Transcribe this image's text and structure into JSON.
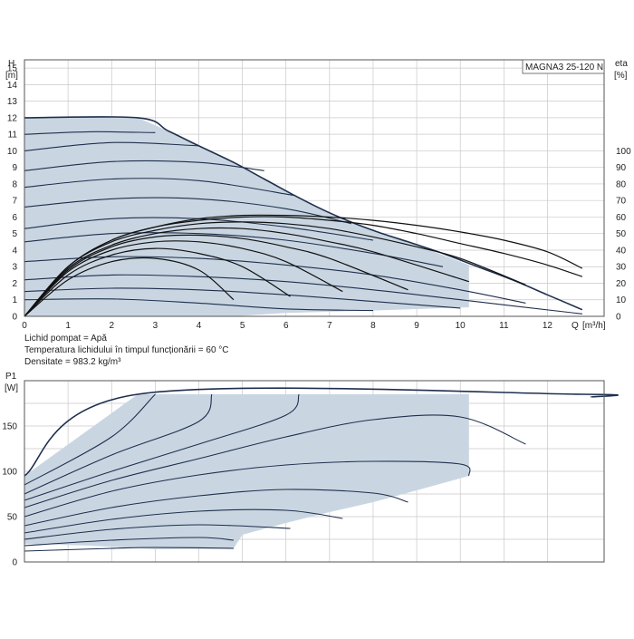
{
  "colors": {
    "fill": "#c9d6e2",
    "dark_curve": "#1f2f4d",
    "black_curve": "#111111",
    "grid": "#c8c8c8",
    "frame": "#555555"
  },
  "chart_data": [
    {
      "type": "line",
      "title": "MAGNA3 25-120 N",
      "ylabel": "H",
      "yunit": "[m]",
      "xlabel": "Q",
      "xunit": "[m³/h]",
      "y2label": "eta",
      "y2unit": "[%]",
      "xlim": [
        0,
        13.3
      ],
      "ylim": [
        0,
        15.5
      ],
      "y2lim": [
        0,
        100
      ],
      "x_ticks": [
        0,
        1,
        2,
        3,
        4,
        5,
        6,
        7,
        8,
        9,
        10,
        11,
        12
      ],
      "y_ticks": [
        0,
        1,
        2,
        3,
        4,
        5,
        6,
        7,
        8,
        9,
        10,
        11,
        12,
        13,
        14,
        15
      ],
      "y2_ticks": [
        0,
        10,
        20,
        30,
        40,
        50,
        60,
        70,
        80,
        90,
        100
      ],
      "grid": true,
      "notes": [
        "Lichid pompat = Apă",
        "Temperatura lichidului în timpul funcționării = 60 °C",
        "Densitate = 983.2 kg/m³"
      ],
      "operating_area": [
        [
          0,
          12
        ],
        [
          2.6,
          12
        ],
        [
          3.3,
          11.2
        ],
        [
          4,
          10.3
        ],
        [
          4.8,
          9.3
        ],
        [
          5.5,
          8.3
        ],
        [
          6.2,
          7.3
        ],
        [
          6.8,
          6.5
        ],
        [
          7.4,
          5.8
        ],
        [
          8.1,
          5.1
        ],
        [
          8.8,
          4.5
        ],
        [
          9.6,
          3.7
        ],
        [
          10.2,
          3.1
        ],
        [
          10.2,
          0.55
        ],
        [
          8,
          0.35
        ],
        [
          6,
          0.2
        ],
        [
          4.8,
          0
        ],
        [
          0,
          0
        ]
      ],
      "max_curve": [
        [
          0,
          12
        ],
        [
          2.6,
          12
        ],
        [
          3.3,
          11.2
        ],
        [
          4,
          10.3
        ],
        [
          4.8,
          9.3
        ],
        [
          5.5,
          8.3
        ],
        [
          6.2,
          7.3
        ],
        [
          6.8,
          6.5
        ],
        [
          7.4,
          5.8
        ],
        [
          8.1,
          5.1
        ],
        [
          8.8,
          4.5
        ],
        [
          9.6,
          3.8
        ],
        [
          10.4,
          3
        ],
        [
          11.2,
          2.2
        ],
        [
          12,
          1.3
        ],
        [
          12.8,
          0.4
        ]
      ],
      "head_curves": [
        {
          "points": [
            [
              0,
              11
            ],
            [
              1.5,
              11.15
            ],
            [
              3,
              11.1
            ]
          ]
        },
        {
          "points": [
            [
              0,
              10
            ],
            [
              2,
              10.5
            ],
            [
              4,
              10.3
            ]
          ]
        },
        {
          "points": [
            [
              0,
              8.8
            ],
            [
              2,
              9.35
            ],
            [
              4,
              9.3
            ],
            [
              5.5,
              8.8
            ]
          ]
        },
        {
          "points": [
            [
              0,
              7.8
            ],
            [
              2,
              8.3
            ],
            [
              4,
              8.2
            ],
            [
              6.2,
              7.3
            ]
          ]
        },
        {
          "points": [
            [
              0,
              6.6
            ],
            [
              2,
              7.1
            ],
            [
              4,
              7.1
            ],
            [
              6,
              6.5
            ],
            [
              7.5,
              5.6
            ]
          ]
        },
        {
          "points": [
            [
              0,
              5.3
            ],
            [
              2,
              5.9
            ],
            [
              4,
              5.9
            ],
            [
              6,
              5.4
            ],
            [
              8,
              4.6
            ]
          ]
        },
        {
          "points": [
            [
              0,
              4.5
            ],
            [
              2,
              5
            ],
            [
              4,
              5
            ],
            [
              6,
              4.6
            ],
            [
              8,
              3.8
            ],
            [
              9.6,
              3
            ]
          ]
        },
        {
          "points": [
            [
              0,
              3.3
            ],
            [
              2,
              3.6
            ],
            [
              4,
              3.5
            ],
            [
              6,
              3.1
            ],
            [
              8,
              2.5
            ],
            [
              10,
              1.6
            ],
            [
              11.5,
              0.8
            ]
          ]
        },
        {
          "points": [
            [
              0,
              2.2
            ],
            [
              2,
              2.5
            ],
            [
              4,
              2.4
            ],
            [
              6,
              2.1
            ],
            [
              8,
              1.6
            ],
            [
              10,
              1
            ],
            [
              12.8,
              0.15
            ]
          ]
        },
        {
          "points": [
            [
              0,
              1.5
            ],
            [
              2,
              1.7
            ],
            [
              4,
              1.6
            ],
            [
              6,
              1.3
            ],
            [
              8,
              0.9
            ],
            [
              10,
              0.5
            ]
          ]
        },
        {
          "points": [
            [
              0,
              1
            ],
            [
              2,
              1.05
            ],
            [
              4,
              0.8
            ],
            [
              6,
              0.45
            ],
            [
              8,
              0.35
            ]
          ]
        }
      ],
      "efficiency_curves": [
        {
          "points": [
            [
              0,
              0
            ],
            [
              1,
              22
            ],
            [
              2,
              33
            ],
            [
              3,
              35
            ],
            [
              4,
              28
            ],
            [
              4.8,
              10
            ]
          ]
        },
        {
          "points": [
            [
              0,
              0
            ],
            [
              1,
              25
            ],
            [
              2,
              37
            ],
            [
              3,
              41
            ],
            [
              4,
              38
            ],
            [
              5,
              30
            ],
            [
              6.1,
              12
            ]
          ]
        },
        {
          "points": [
            [
              0,
              0
            ],
            [
              1,
              27
            ],
            [
              2,
              40
            ],
            [
              3,
              45
            ],
            [
              4,
              45
            ],
            [
              5,
              41
            ],
            [
              6,
              33
            ],
            [
              7.3,
              15
            ]
          ]
        },
        {
          "points": [
            [
              0,
              0
            ],
            [
              1,
              28
            ],
            [
              2,
              42
            ],
            [
              3,
              48
            ],
            [
              4,
              49
            ],
            [
              5,
              47
            ],
            [
              6,
              42
            ],
            [
              7,
              35
            ],
            [
              8.8,
              16
            ]
          ]
        },
        {
          "points": [
            [
              0,
              0
            ],
            [
              1,
              29
            ],
            [
              2,
              43
            ],
            [
              3,
              50
            ],
            [
              4,
              53
            ],
            [
              5,
              53
            ],
            [
              6,
              50
            ],
            [
              7,
              45
            ],
            [
              8,
              39
            ],
            [
              10.2,
              21
            ]
          ]
        },
        {
          "points": [
            [
              0,
              0
            ],
            [
              1,
              30
            ],
            [
              2,
              45
            ],
            [
              3,
              52
            ],
            [
              4,
              56
            ],
            [
              5,
              57
            ],
            [
              6,
              56
            ],
            [
              7,
              53
            ],
            [
              8,
              48
            ],
            [
              9,
              42
            ],
            [
              10,
              35
            ],
            [
              11.5,
              19
            ]
          ]
        },
        {
          "points": [
            [
              0,
              0
            ],
            [
              1,
              30
            ],
            [
              2,
              46
            ],
            [
              3,
              54
            ],
            [
              4,
              58
            ],
            [
              5,
              60
            ],
            [
              6,
              60
            ],
            [
              7,
              58
            ],
            [
              8,
              55
            ],
            [
              9,
              50
            ],
            [
              10,
              44
            ],
            [
              11,
              38
            ],
            [
              12,
              31
            ],
            [
              12.8,
              24
            ]
          ]
        },
        {
          "points": [
            [
              0,
              0
            ],
            [
              1,
              30
            ],
            [
              2,
              46
            ],
            [
              3,
              54
            ],
            [
              4,
              59
            ],
            [
              5,
              61
            ],
            [
              6,
              61
            ],
            [
              7,
              60
            ],
            [
              8,
              58
            ],
            [
              9,
              55
            ],
            [
              10,
              51
            ],
            [
              11,
              46
            ],
            [
              12,
              39
            ],
            [
              12.8,
              29
            ]
          ]
        }
      ]
    },
    {
      "type": "line",
      "ylabel": "P1",
      "yunit": "[W]",
      "xlim": [
        0,
        13.3
      ],
      "ylim": [
        0,
        200
      ],
      "x_ticks": [
        0,
        1,
        2,
        3,
        4,
        5,
        6,
        7,
        8,
        9,
        10,
        11,
        12
      ],
      "y_ticks": [
        0,
        50,
        100,
        150
      ],
      "grid": true,
      "operating_area": [
        [
          0,
          95
        ],
        [
          2.6,
          185
        ],
        [
          10.2,
          185
        ],
        [
          10.2,
          95
        ],
        [
          9,
          79
        ],
        [
          8,
          66
        ],
        [
          7,
          55
        ],
        [
          6,
          43
        ],
        [
          5,
          30
        ],
        [
          4.8,
          15
        ],
        [
          3,
          14
        ],
        [
          1.5,
          18
        ],
        [
          0,
          20
        ]
      ],
      "power_curves": [
        {
          "points": [
            [
              0,
              95
            ],
            [
              2.6,
              185
            ],
            [
              12.8,
              185
            ],
            [
              13,
              182
            ]
          ]
        },
        {
          "points": [
            [
              0,
              85
            ],
            [
              2,
              138
            ],
            [
              3,
              185
            ]
          ]
        },
        {
          "points": [
            [
              0,
              75
            ],
            [
              2,
              118
            ],
            [
              4,
              155
            ],
            [
              4.3,
              185
            ]
          ]
        },
        {
          "points": [
            [
              0,
              68
            ],
            [
              2,
              100
            ],
            [
              4,
              130
            ],
            [
              6,
              162
            ],
            [
              6.3,
              185
            ]
          ]
        },
        {
          "points": [
            [
              0,
              60
            ],
            [
              2,
              90
            ],
            [
              4,
              114
            ],
            [
              6,
              138
            ],
            [
              8,
              157
            ],
            [
              10,
              160
            ],
            [
              11.5,
              130
            ]
          ]
        },
        {
          "points": [
            [
              0,
              50
            ],
            [
              2,
              78
            ],
            [
              4,
              96
            ],
            [
              6,
              107
            ],
            [
              8,
              111
            ],
            [
              10,
              108
            ],
            [
              10.2,
              95
            ]
          ]
        },
        {
          "points": [
            [
              0,
              40
            ],
            [
              2,
              60
            ],
            [
              4,
              73
            ],
            [
              6,
              80
            ],
            [
              8,
              76
            ],
            [
              8.8,
              66
            ]
          ]
        },
        {
          "points": [
            [
              0,
              32
            ],
            [
              2,
              47
            ],
            [
              4,
              56
            ],
            [
              6,
              57
            ],
            [
              7.3,
              48
            ]
          ]
        },
        {
          "points": [
            [
              0,
              25
            ],
            [
              2,
              36
            ],
            [
              4,
              41
            ],
            [
              6.1,
              37
            ]
          ]
        },
        {
          "points": [
            [
              0,
              18
            ],
            [
              2,
              24
            ],
            [
              4,
              27
            ],
            [
              4.8,
              24
            ]
          ]
        },
        {
          "points": [
            [
              0,
              12
            ],
            [
              2,
              15
            ],
            [
              3,
              16
            ],
            [
              4.8,
              15
            ]
          ]
        }
      ]
    }
  ]
}
